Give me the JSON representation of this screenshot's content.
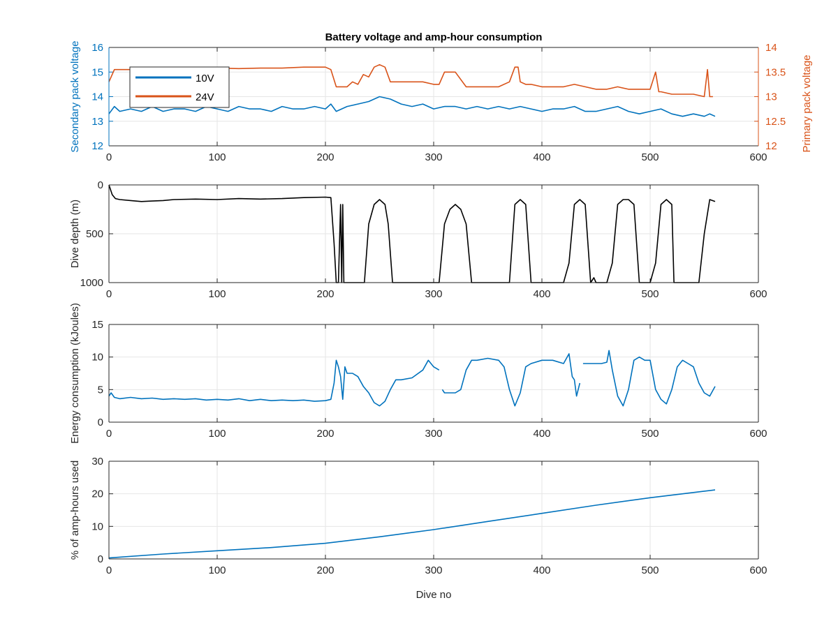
{
  "chart_data": [
    {
      "type": "line",
      "title": "Battery voltage and amp-hour consumption",
      "xlabel": "",
      "ylabel": "Secondary pack voltage",
      "ylabel_right": "Primary pack voltage",
      "xlim": [
        0,
        600
      ],
      "ylim": [
        12,
        16
      ],
      "ylim_right": [
        12,
        14
      ],
      "xticks": [
        "0",
        "100",
        "200",
        "300",
        "400",
        "500",
        "600"
      ],
      "yticks": [
        "12",
        "13",
        "14",
        "15",
        "16"
      ],
      "yticks_right": [
        "12",
        "12.5",
        "13",
        "13.5",
        "14"
      ],
      "grid": true,
      "legend": "top-left",
      "colors": {
        "left_axis": "#0072BD",
        "right_axis": "#D95319"
      },
      "series": [
        {
          "name": "10V",
          "axis": "left",
          "color": "#0072BD",
          "x": [
            0,
            5,
            10,
            20,
            30,
            40,
            50,
            60,
            70,
            80,
            90,
            100,
            110,
            120,
            130,
            140,
            150,
            160,
            170,
            180,
            190,
            200,
            205,
            210,
            215,
            220,
            230,
            240,
            250,
            260,
            270,
            280,
            290,
            300,
            310,
            320,
            330,
            340,
            350,
            360,
            370,
            380,
            390,
            400,
            410,
            420,
            430,
            440,
            450,
            460,
            470,
            480,
            490,
            500,
            510,
            520,
            530,
            540,
            550,
            555,
            560
          ],
          "y": [
            13.3,
            13.6,
            13.4,
            13.5,
            13.4,
            13.6,
            13.4,
            13.5,
            13.5,
            13.4,
            13.6,
            13.5,
            13.4,
            13.6,
            13.5,
            13.5,
            13.4,
            13.6,
            13.5,
            13.5,
            13.6,
            13.5,
            13.7,
            13.4,
            13.5,
            13.6,
            13.7,
            13.8,
            14.0,
            13.9,
            13.7,
            13.6,
            13.7,
            13.5,
            13.6,
            13.6,
            13.5,
            13.6,
            13.5,
            13.6,
            13.5,
            13.6,
            13.5,
            13.4,
            13.5,
            13.5,
            13.6,
            13.4,
            13.4,
            13.5,
            13.6,
            13.4,
            13.3,
            13.4,
            13.5,
            13.3,
            13.2,
            13.3,
            13.2,
            13.3,
            13.2
          ]
        },
        {
          "name": "24V",
          "axis": "right",
          "color": "#D95319",
          "x": [
            0,
            5,
            20,
            40,
            60,
            80,
            100,
            120,
            140,
            160,
            180,
            200,
            205,
            210,
            215,
            220,
            225,
            230,
            235,
            240,
            245,
            250,
            255,
            260,
            270,
            280,
            290,
            300,
            305,
            310,
            320,
            330,
            335,
            340,
            350,
            360,
            370,
            375,
            378,
            380,
            385,
            390,
            400,
            410,
            420,
            430,
            440,
            450,
            460,
            470,
            480,
            490,
            500,
            505,
            508,
            510,
            520,
            530,
            540,
            550,
            553,
            555,
            558
          ],
          "y": [
            13.3,
            13.55,
            13.55,
            13.55,
            13.57,
            13.57,
            13.58,
            13.57,
            13.58,
            13.58,
            13.6,
            13.6,
            13.55,
            13.2,
            13.2,
            13.2,
            13.3,
            13.25,
            13.45,
            13.4,
            13.6,
            13.65,
            13.6,
            13.3,
            13.3,
            13.3,
            13.3,
            13.25,
            13.25,
            13.5,
            13.5,
            13.2,
            13.2,
            13.2,
            13.2,
            13.2,
            13.3,
            13.6,
            13.6,
            13.3,
            13.25,
            13.25,
            13.2,
            13.2,
            13.2,
            13.25,
            13.2,
            13.15,
            13.15,
            13.2,
            13.15,
            13.15,
            13.15,
            13.5,
            13.1,
            13.1,
            13.05,
            13.05,
            13.05,
            13.0,
            13.55,
            13.0,
            13.0
          ]
        }
      ]
    },
    {
      "type": "line",
      "title": "",
      "xlabel": "",
      "ylabel": "Dive depth (m)",
      "xlim": [
        0,
        600
      ],
      "ylim": [
        0,
        1000
      ],
      "y_reversed": true,
      "xticks": [
        "0",
        "100",
        "200",
        "300",
        "400",
        "500",
        "600"
      ],
      "yticks": [
        "0",
        "500",
        "1000"
      ],
      "grid": true,
      "series": [
        {
          "color": "#000000",
          "x": [
            0,
            3,
            6,
            10,
            20,
            30,
            40,
            50,
            60,
            80,
            100,
            120,
            140,
            160,
            180,
            200,
            205,
            208,
            210,
            212,
            214,
            215,
            216,
            217,
            218,
            220,
            230,
            236,
            240,
            245,
            250,
            255,
            258,
            262,
            270,
            280,
            290,
            300,
            305,
            310,
            315,
            320,
            325,
            330,
            335,
            340,
            360,
            365,
            370,
            375,
            380,
            385,
            390,
            400,
            410,
            420,
            425,
            430,
            435,
            440,
            445,
            448,
            450,
            460,
            465,
            470,
            475,
            480,
            485,
            490,
            500,
            505,
            510,
            515,
            520,
            522,
            530,
            540,
            545,
            550,
            555,
            560
          ],
          "y": [
            0,
            100,
            140,
            150,
            160,
            170,
            165,
            160,
            150,
            145,
            150,
            140,
            145,
            140,
            130,
            125,
            130,
            600,
            1000,
            1000,
            200,
            1000,
            200,
            1000,
            1000,
            1000,
            1000,
            1000,
            400,
            200,
            150,
            200,
            400,
            1000,
            1000,
            1000,
            1000,
            1000,
            1000,
            400,
            250,
            200,
            250,
            400,
            1000,
            1010,
            1010,
            1000,
            1000,
            200,
            150,
            200,
            1000,
            1000,
            1000,
            1000,
            800,
            200,
            150,
            200,
            1000,
            950,
            1000,
            1000,
            800,
            200,
            150,
            150,
            200,
            1000,
            1000,
            800,
            200,
            150,
            200,
            1000,
            1000,
            1000,
            1000,
            500,
            150,
            170
          ]
        }
      ]
    },
    {
      "type": "line",
      "title": "",
      "xlabel": "",
      "ylabel": "Energy consumption (kJoules)",
      "xlim": [
        0,
        600
      ],
      "ylim": [
        0,
        15
      ],
      "xticks": [
        "0",
        "100",
        "200",
        "300",
        "400",
        "500",
        "600"
      ],
      "yticks": [
        "0",
        "5",
        "10",
        "15"
      ],
      "grid": true,
      "series": [
        {
          "color": "#0072BD",
          "x": [
            0,
            2,
            5,
            10,
            20,
            30,
            40,
            50,
            60,
            70,
            80,
            90,
            100,
            110,
            120,
            130,
            140,
            150,
            160,
            170,
            180,
            190,
            200,
            205,
            208,
            210,
            212,
            214,
            216,
            218,
            220,
            225,
            230,
            235,
            240,
            245,
            250,
            255,
            260,
            265,
            270,
            280,
            290,
            295,
            300,
            305,
            null,
            308,
            310,
            315,
            320,
            325,
            330,
            335,
            340,
            350,
            360,
            365,
            370,
            375,
            380,
            385,
            390,
            400,
            410,
            420,
            425,
            428,
            430,
            432,
            435,
            null,
            438,
            445,
            455,
            460,
            462,
            465,
            470,
            475,
            480,
            485,
            490,
            495,
            500,
            505,
            510,
            515,
            520,
            525,
            530,
            535,
            540,
            545,
            550,
            555,
            560
          ],
          "y": [
            4.0,
            4.5,
            3.8,
            3.6,
            3.8,
            3.6,
            3.7,
            3.5,
            3.6,
            3.5,
            3.6,
            3.4,
            3.5,
            3.4,
            3.6,
            3.3,
            3.5,
            3.3,
            3.4,
            3.3,
            3.4,
            3.2,
            3.3,
            3.5,
            6.0,
            9.5,
            8.5,
            7.0,
            3.5,
            8.5,
            7.5,
            7.5,
            7.0,
            5.5,
            4.5,
            3.0,
            2.5,
            3.2,
            5.0,
            6.5,
            6.5,
            6.8,
            8.0,
            9.5,
            8.5,
            8.0,
            null,
            5.0,
            4.5,
            4.5,
            4.5,
            5.0,
            8.0,
            9.5,
            9.5,
            9.8,
            9.5,
            8.5,
            5.0,
            2.5,
            4.5,
            8.5,
            9.0,
            9.5,
            9.5,
            9.0,
            10.5,
            7.0,
            6.5,
            4.0,
            6.0,
            null,
            9.0,
            9.0,
            9.0,
            9.2,
            11.0,
            8.0,
            4.0,
            2.5,
            5.0,
            9.5,
            10.0,
            9.5,
            9.5,
            5.0,
            3.5,
            2.8,
            5.0,
            8.5,
            9.5,
            9.0,
            8.5,
            6.0,
            4.5,
            4.0,
            5.5
          ]
        }
      ]
    },
    {
      "type": "line",
      "title": "",
      "xlabel": "Dive no",
      "ylabel": "% of amp-hours used",
      "xlim": [
        0,
        600
      ],
      "ylim": [
        0,
        30
      ],
      "xticks": [
        "0",
        "100",
        "200",
        "300",
        "400",
        "500",
        "600"
      ],
      "yticks": [
        "0",
        "10",
        "20",
        "30"
      ],
      "grid": true,
      "series": [
        {
          "color": "#0072BD",
          "x": [
            0,
            50,
            100,
            150,
            200,
            250,
            300,
            350,
            400,
            450,
            500,
            550,
            560
          ],
          "y": [
            0.3,
            1.5,
            2.5,
            3.5,
            4.8,
            6.8,
            9.0,
            11.5,
            14.0,
            16.5,
            18.8,
            20.8,
            21.2
          ]
        }
      ]
    }
  ]
}
